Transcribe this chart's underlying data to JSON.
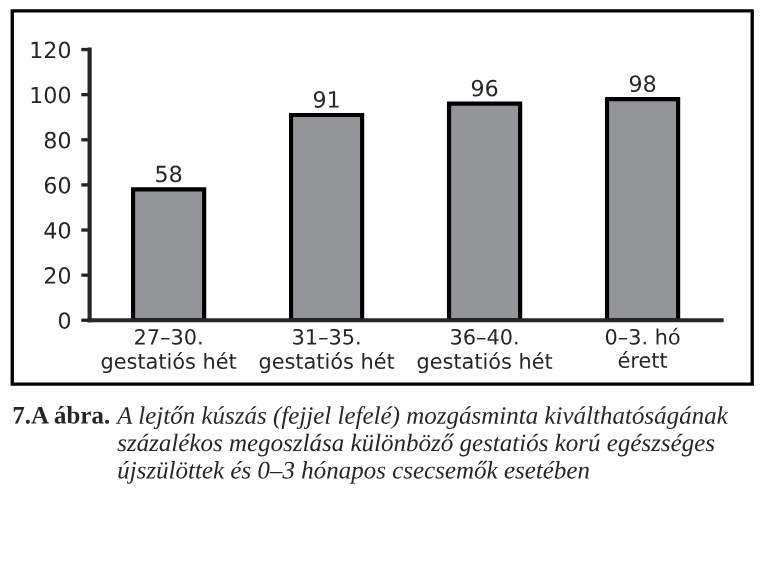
{
  "chart_data": {
    "type": "bar",
    "categories": [
      "27–30.\ngestatiós hét",
      "31–35.\ngestatiós hét",
      "36–40.\ngestatiós hét",
      "0–3. hó\nérett"
    ],
    "values": [
      58,
      91,
      96,
      98
    ],
    "color": "#939598",
    "ylim": [
      0,
      120
    ],
    "yticks": [
      0,
      20,
      40,
      60,
      80,
      100,
      120
    ],
    "data_labels": true,
    "grid": false,
    "legend": false,
    "annotations": [
      "7.A ábra.",
      "A lejtőn kúszás (fejjel lefelé) mozgásminta kiválthatóságának százalékos megoszlása különböző gestatiós korú egészséges újszülöttek és 0–3 hónapos csecsemők esetében"
    ]
  }
}
